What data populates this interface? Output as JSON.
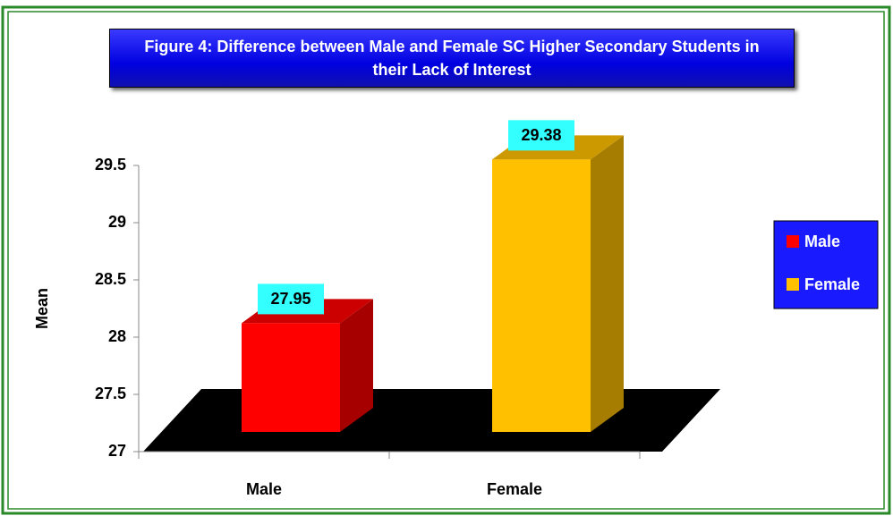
{
  "chart_data": {
    "type": "bar",
    "title": "Figure 4: Difference between Male and Female SC Higher Secondary Students in their Lack of Interest",
    "y_label": "Mean",
    "categories": [
      "Male",
      "Female"
    ],
    "values": [
      27.95,
      29.38
    ],
    "colors": [
      "#ff0000",
      "#ffc000"
    ],
    "ylim": [
      27,
      29.5
    ],
    "yticks": [
      27,
      27.5,
      28,
      28.5,
      29,
      29.5
    ],
    "legend": "right"
  }
}
